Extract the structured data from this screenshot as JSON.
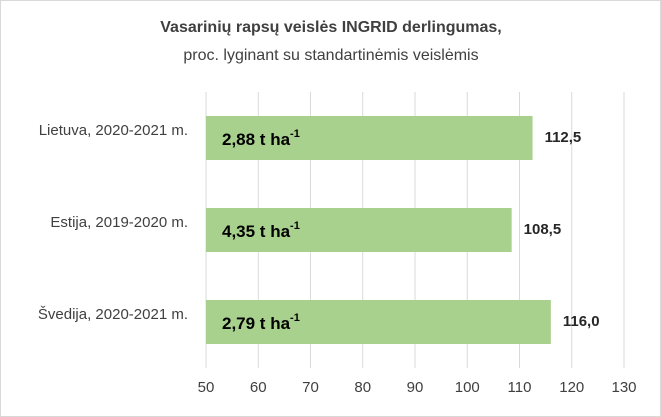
{
  "chart_data": {
    "type": "bar",
    "horizontal": true,
    "title": "Vasarinių rapsų veislės INGRID derlingumas,",
    "subtitle": "proc. lyginant su standartinėmis veislėmis",
    "categories": [
      "Lietuva, 2020-2021 m.",
      "Estija, 2019-2020 m.",
      "Švedija, 2020-2021 m."
    ],
    "values": [
      112.5,
      108.5,
      116.0
    ],
    "value_labels": [
      "112,5",
      "108,5",
      "116,0"
    ],
    "annotations": [
      {
        "text": "2,88 t ha",
        "sup": "-1"
      },
      {
        "text": "4,35 t ha",
        "sup": "-1"
      },
      {
        "text": "2,79 t ha",
        "sup": "-1"
      }
    ],
    "color": "#a9d18e",
    "xlim": [
      50,
      130
    ],
    "xticks": [
      50,
      60,
      70,
      80,
      90,
      100,
      110,
      120,
      130
    ],
    "grid": true
  }
}
